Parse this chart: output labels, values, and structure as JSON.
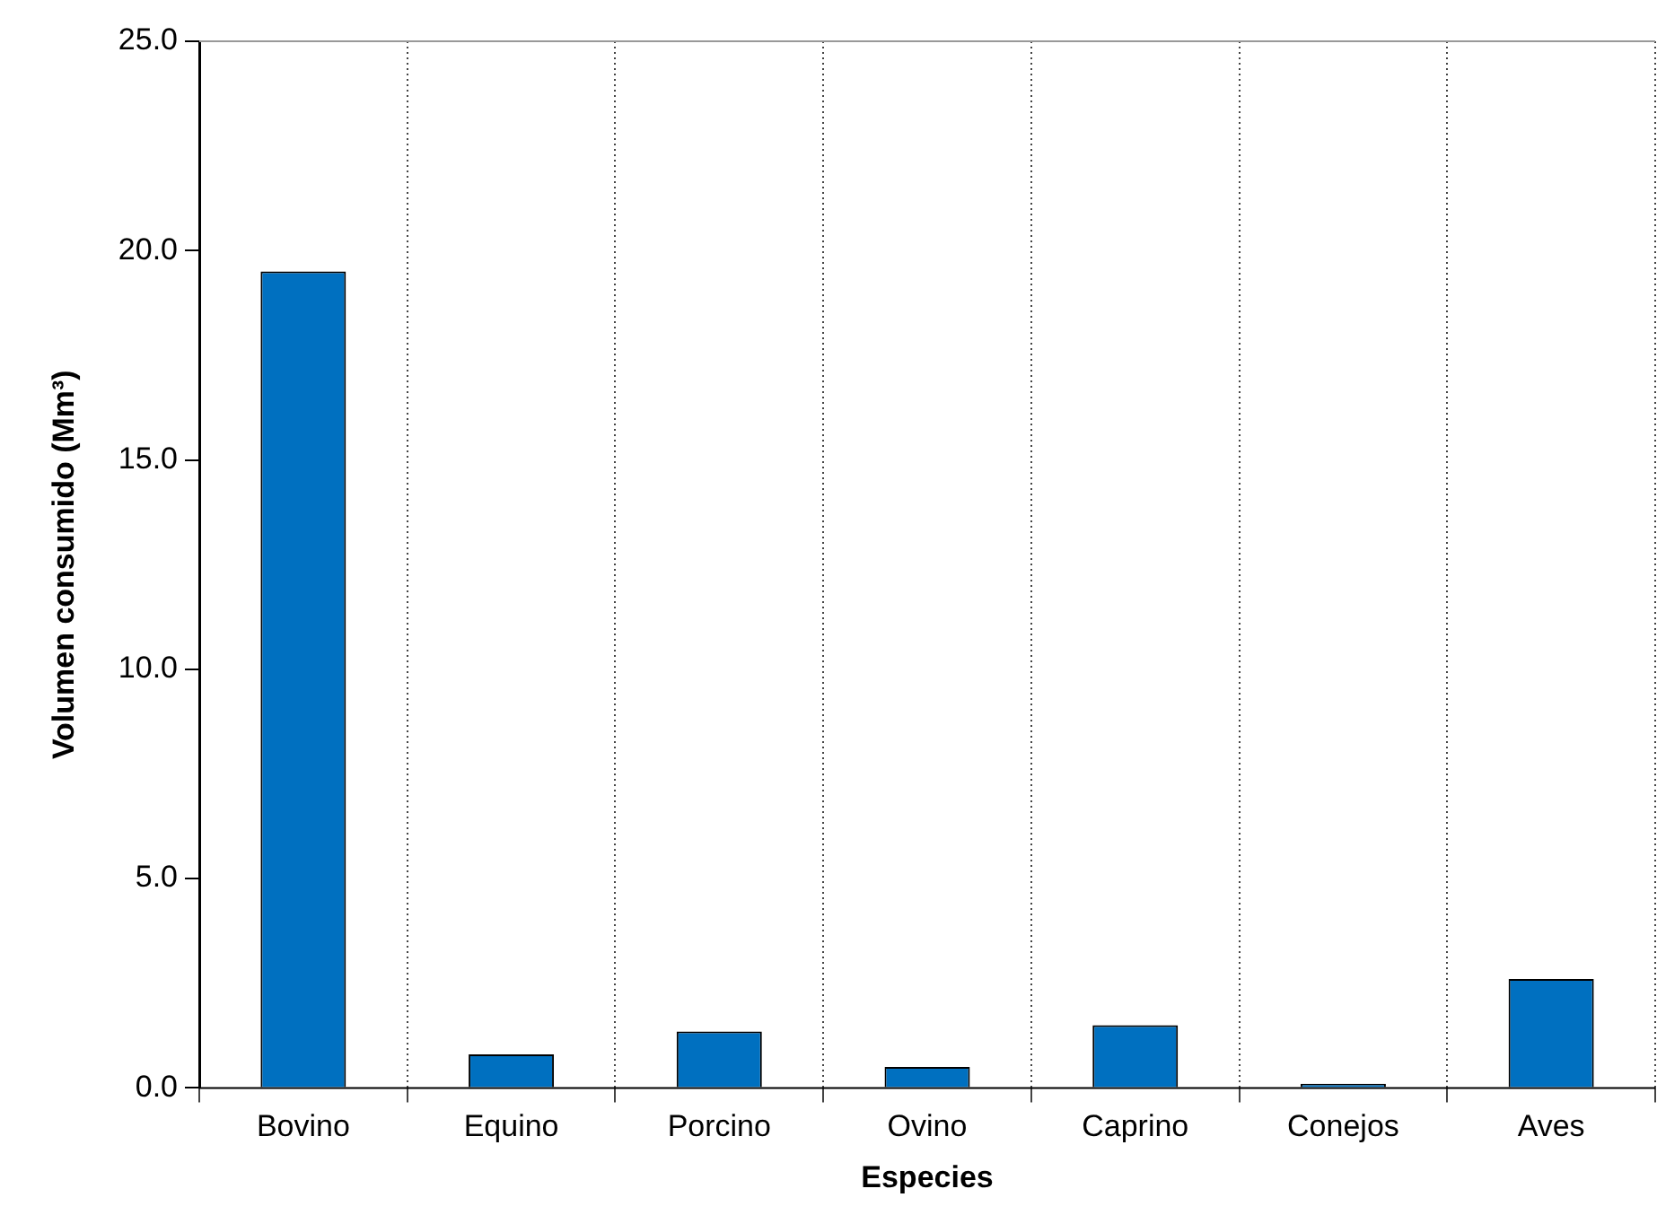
{
  "chart_data": {
    "type": "bar",
    "xlabel": "Especies",
    "ylabel": "Volumen consumido (Mm³)",
    "categories": [
      "Bovino",
      "Equino",
      "Porcino",
      "Ovino",
      "Caprino",
      "Conejos",
      "Aves"
    ],
    "values": [
      19.5,
      0.8,
      1.35,
      0.5,
      1.5,
      0.1,
      2.6
    ],
    "color": "#0070c0",
    "ylim": [
      0,
      25
    ],
    "yticks": [
      {
        "value": 0,
        "label": "0.0"
      },
      {
        "value": 5,
        "label": "5.0"
      },
      {
        "value": 10,
        "label": "10.0"
      },
      {
        "value": 15,
        "label": "15.0"
      },
      {
        "value": 20,
        "label": "20.0"
      },
      {
        "value": 25,
        "label": "25.0"
      }
    ],
    "grid": "x",
    "legend": false
  }
}
